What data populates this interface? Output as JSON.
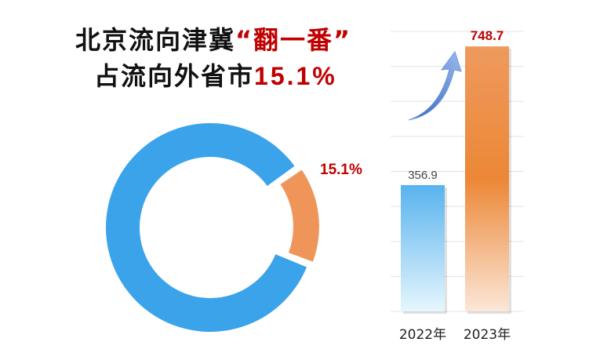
{
  "title": {
    "line1_main": "北京流向津冀",
    "line1_highlight": "“翻一番”",
    "line2_main": "占流向外省市",
    "line2_highlight": "15.1%"
  },
  "colors": {
    "donut_main": "#3aa3ea",
    "donut_slice": "#ef9559",
    "bar_2022_top": "#58b3ee",
    "bar_2022_bottom": "#e6f6fd",
    "bar_2023_top": "#ee9a5e",
    "bar_2023_bottom": "#fbe7d8",
    "highlight": "#c00000",
    "arrow": "#6f9be0"
  },
  "chart_data": [
    {
      "type": "pie",
      "variant": "donut",
      "slices": [
        {
          "label": "",
          "value": 84.9
        },
        {
          "label": "15.1%",
          "value": 15.1
        }
      ],
      "highlight_label": "15.1%"
    },
    {
      "type": "bar",
      "categories": [
        "2022年",
        "2023年"
      ],
      "values": [
        356.9,
        748.7
      ],
      "value_labels": [
        "356.9",
        "748.7"
      ],
      "ylim": [
        0,
        800
      ],
      "grid": true,
      "trend_arrow": "up"
    }
  ]
}
